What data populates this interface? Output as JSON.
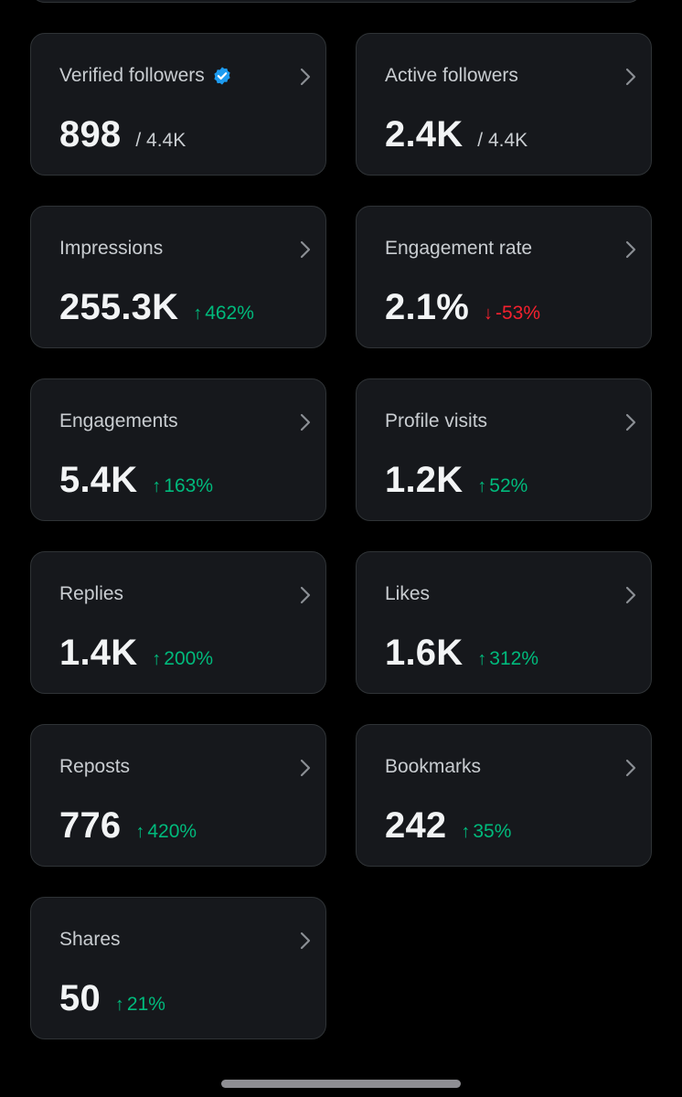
{
  "cards": [
    {
      "label": "Verified followers",
      "value": "898",
      "sub": "/ 4.4K",
      "verified": true
    },
    {
      "label": "Active followers",
      "value": "2.4K",
      "sub": "/ 4.4K"
    },
    {
      "label": "Impressions",
      "value": "255.3K",
      "change": "462%",
      "direction": "up",
      "arrow": "↑"
    },
    {
      "label": "Engagement rate",
      "value": "2.1%",
      "change": "-53%",
      "direction": "down",
      "arrow": "↓"
    },
    {
      "label": "Engagements",
      "value": "5.4K",
      "change": "163%",
      "direction": "up",
      "arrow": "↑"
    },
    {
      "label": "Profile visits",
      "value": "1.2K",
      "change": "52%",
      "direction": "up",
      "arrow": "↑"
    },
    {
      "label": "Replies",
      "value": "1.4K",
      "change": "200%",
      "direction": "up",
      "arrow": "↑"
    },
    {
      "label": "Likes",
      "value": "1.6K",
      "change": "312%",
      "direction": "up",
      "arrow": "↑"
    },
    {
      "label": "Reposts",
      "value": "776",
      "change": "420%",
      "direction": "up",
      "arrow": "↑"
    },
    {
      "label": "Bookmarks",
      "value": "242",
      "change": "35%",
      "direction": "up",
      "arrow": "↑"
    },
    {
      "label": "Shares",
      "value": "50",
      "change": "21%",
      "direction": "up",
      "arrow": "↑"
    }
  ],
  "colors": {
    "background": "#000000",
    "card": "#16181c",
    "border": "#2f3336",
    "up": "#00ba7c",
    "down": "#f4212e",
    "verified": "#1d9bf0"
  },
  "icons": {
    "chevron": "chevron-right-icon",
    "verified": "verified-badge-icon"
  }
}
